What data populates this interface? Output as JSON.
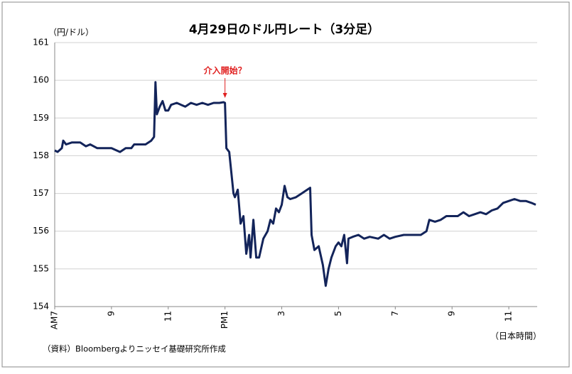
{
  "chart_data": {
    "type": "line",
    "title": "4月29日のドル円レート（3分足）",
    "y_axis_label": "（円/ドル）",
    "x_axis_label": "（日本時間）",
    "source": "（資料）Bloombergよりニッセイ基礎研究所作成",
    "annotation": {
      "text": "介入開始？",
      "x": 13.0,
      "color": "#e02020"
    },
    "xlim": [
      7,
      24
    ],
    "ylim": [
      154,
      161
    ],
    "yticks": [
      154,
      155,
      156,
      157,
      158,
      159,
      160,
      161
    ],
    "xticks": [
      {
        "value": 7,
        "label": "AM7"
      },
      9,
      11,
      {
        "value": 13,
        "label": "PM1"
      },
      {
        "value": 15,
        "label": "3"
      },
      {
        "value": 17,
        "label": "5"
      },
      {
        "value": 19,
        "label": "7"
      },
      {
        "value": 21,
        "label": "9"
      },
      {
        "value": 23,
        "label": "11"
      }
    ],
    "grid": true,
    "series": [
      {
        "name": "ドル円",
        "color": "#13245a",
        "x": [
          7.0,
          7.1,
          7.25,
          7.3,
          7.4,
          7.6,
          7.9,
          8.1,
          8.25,
          8.5,
          9.0,
          9.3,
          9.5,
          9.7,
          9.8,
          10.0,
          10.2,
          10.4,
          10.5,
          10.55,
          10.6,
          10.7,
          10.8,
          10.9,
          11.0,
          11.1,
          11.3,
          11.6,
          11.8,
          12.0,
          12.2,
          12.4,
          12.6,
          12.8,
          12.95,
          13.0,
          13.05,
          13.15,
          13.3,
          13.35,
          13.45,
          13.55,
          13.65,
          13.75,
          13.85,
          13.9,
          14.0,
          14.1,
          14.2,
          14.35,
          14.5,
          14.6,
          14.7,
          14.8,
          14.9,
          15.0,
          15.1,
          15.2,
          15.3,
          15.5,
          15.7,
          15.9,
          16.0,
          16.05,
          16.15,
          16.3,
          16.45,
          16.55,
          16.65,
          16.75,
          16.9,
          17.0,
          17.1,
          17.2,
          17.3,
          17.35,
          17.5,
          17.7,
          17.9,
          18.1,
          18.4,
          18.6,
          18.8,
          19.0,
          19.3,
          19.6,
          19.9,
          20.1,
          20.2,
          20.4,
          20.6,
          20.8,
          21.0,
          21.2,
          21.4,
          21.6,
          21.8,
          22.0,
          22.2,
          22.4,
          22.6,
          22.8,
          23.0,
          23.2,
          23.4,
          23.6,
          23.8,
          23.95
        ],
        "values": [
          158.14,
          158.1,
          158.2,
          158.4,
          158.3,
          158.35,
          158.35,
          158.25,
          158.3,
          158.2,
          158.2,
          158.1,
          158.2,
          158.2,
          158.3,
          158.3,
          158.3,
          158.4,
          158.5,
          159.95,
          159.1,
          159.3,
          159.45,
          159.2,
          159.2,
          159.35,
          159.4,
          159.3,
          159.4,
          159.35,
          159.4,
          159.35,
          159.4,
          159.4,
          159.42,
          159.4,
          158.2,
          158.1,
          157.0,
          156.9,
          157.1,
          156.2,
          156.4,
          155.4,
          155.9,
          155.3,
          156.3,
          155.3,
          155.3,
          155.8,
          156.0,
          156.3,
          156.2,
          156.6,
          156.5,
          156.7,
          157.2,
          156.9,
          156.85,
          156.9,
          157.0,
          157.1,
          157.15,
          155.9,
          155.5,
          155.6,
          155.1,
          154.55,
          155.0,
          155.3,
          155.6,
          155.7,
          155.6,
          155.9,
          155.15,
          155.8,
          155.85,
          155.9,
          155.8,
          155.85,
          155.8,
          155.9,
          155.8,
          155.85,
          155.9,
          155.9,
          155.9,
          156.0,
          156.3,
          156.25,
          156.3,
          156.4,
          156.4,
          156.4,
          156.5,
          156.4,
          156.45,
          156.5,
          156.45,
          156.55,
          156.6,
          156.75,
          156.8,
          156.85,
          156.8,
          156.8,
          156.75,
          156.7
        ]
      }
    ]
  }
}
